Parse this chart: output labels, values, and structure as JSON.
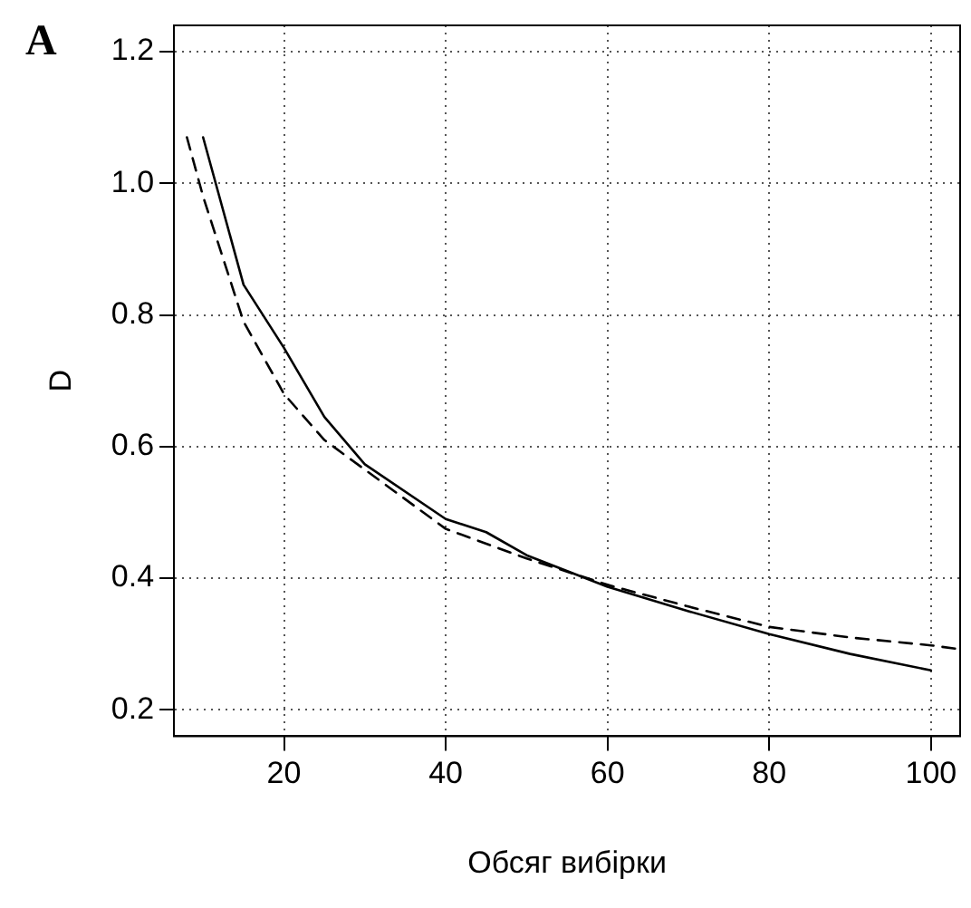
{
  "chart_data": {
    "type": "line",
    "title": "A",
    "xlabel": "Обсяг вибірки",
    "ylabel": "D",
    "xlim": [
      6.4,
      103.6
    ],
    "xticks": [
      20,
      40,
      60,
      80,
      100
    ],
    "ylim": [
      0.16,
      1.24
    ],
    "yticks": [
      0.2,
      0.4,
      0.6,
      0.8,
      {
        "value": 1,
        "label": "1.0"
      },
      1.2
    ],
    "grid": true,
    "marker": "none",
    "series": [
      {
        "color": "#000000",
        "line_style": "solid",
        "x": [
          10,
          15,
          20,
          25,
          30,
          40,
          45,
          50,
          60,
          70,
          80,
          90,
          100
        ],
        "values": [
          1.07,
          0.846,
          0.75,
          0.645,
          0.573,
          0.49,
          0.47,
          0.435,
          0.387,
          0.35,
          0.315,
          0.285,
          0.26
        ]
      },
      {
        "color": "#000000",
        "line_style": "dashed",
        "x": [
          8,
          10,
          15,
          20,
          25,
          30,
          40,
          50,
          60,
          70,
          80,
          90,
          100,
          103.6
        ],
        "values": [
          1.07,
          0.98,
          0.79,
          0.68,
          0.61,
          0.565,
          0.475,
          0.43,
          0.39,
          0.357,
          0.326,
          0.31,
          0.298,
          0.292
        ]
      }
    ]
  }
}
